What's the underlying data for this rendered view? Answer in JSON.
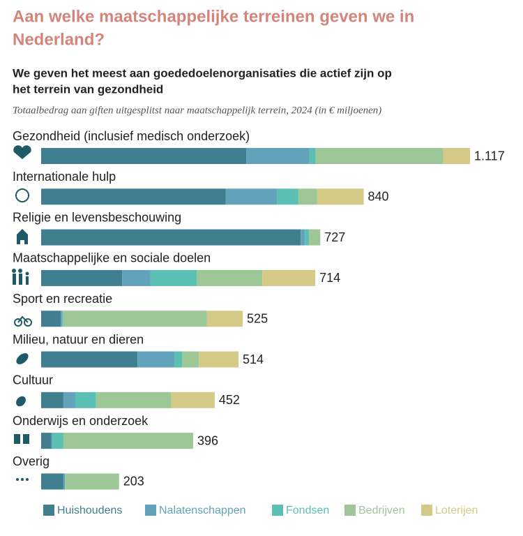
{
  "chart_data": {
    "type": "stacked-bar-horizontal",
    "title": "Aan welke maatschappelijke terreinen geven we in Nederland?",
    "subtitle": "We geven het meest aan goededoelenorganisaties die actief zijn op het terrein van gezondheid",
    "note": "Totaalbedrag aan giften uitgesplitst naar maatschappelijk terrein, 2024 (in € miljoenen)",
    "categories": [
      "Gezondheid (inclusief medisch onderzoek)",
      "Internationale hulp",
      "Religie en levensbeschouwing",
      "Maatschappelijke en sociale doelen",
      "Sport en recreatie",
      "Milieu, natuur en dieren",
      "Cultuur",
      "Onderwijs en onderzoek",
      "Overig"
    ],
    "xlim": [
      0,
      1117
    ],
    "series": [
      {
        "name": "Huishoudens",
        "color": "#3f7f8f",
        "values": [
          534,
          481,
          676,
          211,
          51,
          251,
          58,
          27,
          58
        ]
      },
      {
        "name": "Nalatenschappen",
        "color": "#62a2ba",
        "values": [
          165,
          133,
          11,
          74,
          4,
          96,
          31,
          2,
          4
        ]
      },
      {
        "name": "Fondsen",
        "color": "#5cbfb3",
        "values": [
          16,
          56,
          11,
          120,
          2,
          20,
          54,
          29,
          1
        ]
      },
      {
        "name": "Bedrijven",
        "color": "#9dc796",
        "values": [
          332,
          49,
          29,
          171,
          375,
          44,
          196,
          338,
          140
        ]
      },
      {
        "name": "Loterijen",
        "color": "#d5c987",
        "values": [
          70,
          121,
          0,
          138,
          93,
          103,
          113,
          0,
          0
        ]
      }
    ],
    "totals": {
      "values": [
        1117,
        840,
        727,
        714,
        525,
        514,
        452,
        396,
        203
      ],
      "value_labels": [
        "1.117",
        "840",
        "727",
        "714",
        "525",
        "514",
        "452",
        "396",
        "203"
      ]
    }
  }
}
